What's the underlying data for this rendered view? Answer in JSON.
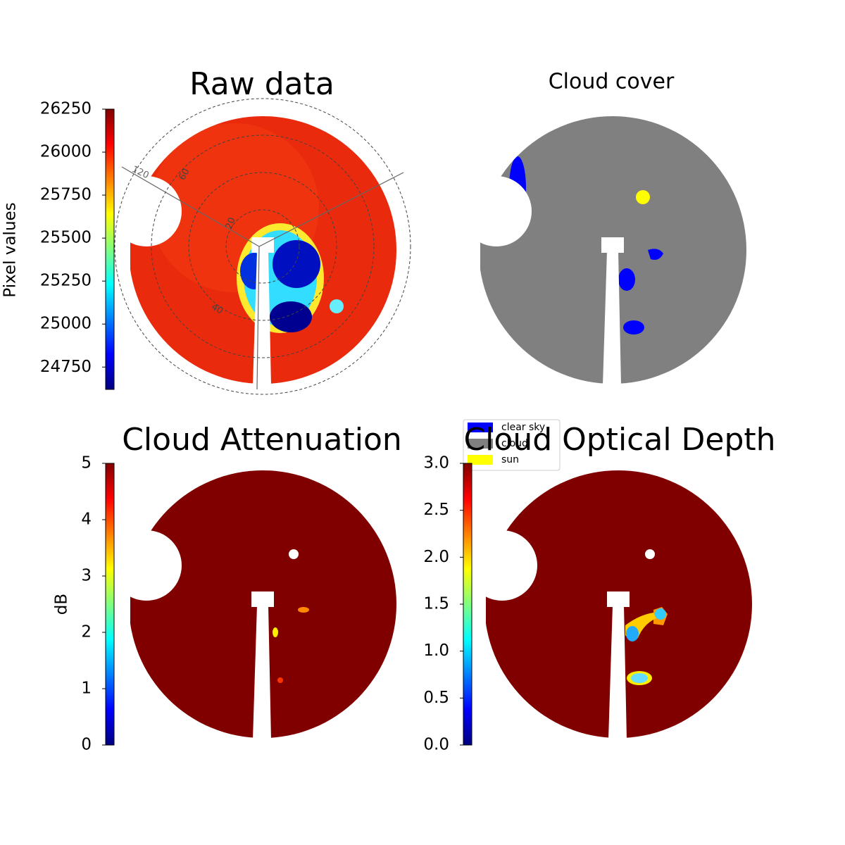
{
  "chart_data": [
    {
      "type": "heatmap",
      "title": "Raw data",
      "colormap": "jet",
      "colorbar_label": "Pixel values",
      "clim": [
        24620,
        26250
      ],
      "cticks": [
        24750,
        25000,
        25250,
        25500,
        25750,
        26000,
        26250
      ],
      "annotations": [
        "120",
        "60",
        "20",
        "40"
      ]
    },
    {
      "type": "categorical_map",
      "title": "Cloud cover",
      "legend": "lower left",
      "series": [
        {
          "name": "clear sky",
          "color": "#0000ff"
        },
        {
          "name": "cloud",
          "color": "#808080"
        },
        {
          "name": "sun",
          "color": "#ffff00"
        }
      ]
    },
    {
      "type": "heatmap",
      "title": "Cloud Attenuation",
      "colormap": "jet",
      "colorbar_label": "dB",
      "clim": [
        0,
        5
      ],
      "cticks": [
        0,
        1,
        2,
        3,
        4,
        5
      ]
    },
    {
      "type": "heatmap",
      "title": "Cloud Optical Depth",
      "colormap": "jet",
      "clim": [
        0,
        3
      ],
      "cticks": [
        {
          "value": 0,
          "label": "0.0"
        },
        {
          "value": 0.5,
          "label": "0.5"
        },
        {
          "value": 1,
          "label": "1.0"
        },
        {
          "value": 1.5,
          "label": "1.5"
        },
        {
          "value": 2,
          "label": "2.0"
        },
        {
          "value": 2.5,
          "label": "2.5"
        },
        {
          "value": 3,
          "label": "3.0"
        }
      ]
    }
  ]
}
